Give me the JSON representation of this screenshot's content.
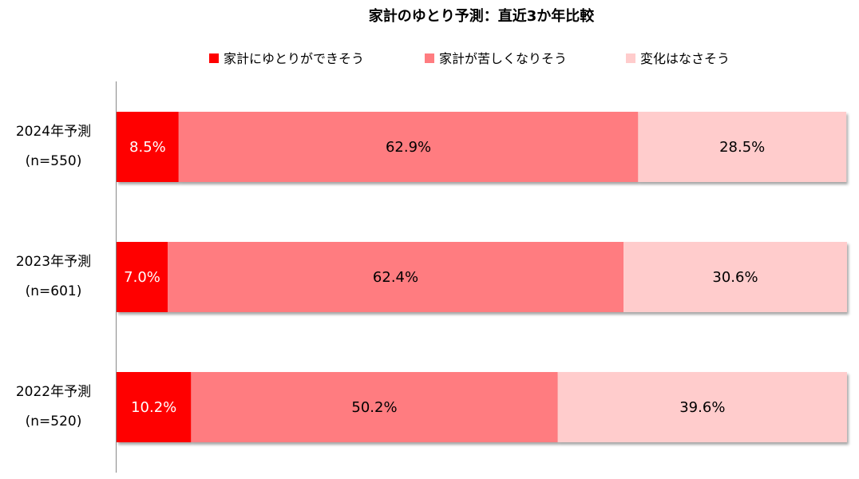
{
  "chart_data": {
    "type": "bar",
    "orientation": "horizontal",
    "stacked": "percent",
    "title": "家計のゆとり予測：直近3か年比較",
    "legend_position": "top",
    "grid": false,
    "xlim": [
      0,
      100
    ],
    "categories": [
      {
        "year": "2024年予測",
        "n": "(n=550)"
      },
      {
        "year": "2023年予測",
        "n": "(n=601)"
      },
      {
        "year": "2022年予測",
        "n": "(n=520)"
      }
    ],
    "series": [
      {
        "name": "家計にゆとりができそう",
        "color": "#ff0000",
        "label_color": "#ffffff",
        "values": [
          8.5,
          7.0,
          10.2
        ],
        "labels": [
          "8.5%",
          "7.0%",
          "10.2%"
        ]
      },
      {
        "name": "家計が苦しくなりそう",
        "color": "#ff7c80",
        "label_color": "#000000",
        "values": [
          62.9,
          62.4,
          50.2
        ],
        "labels": [
          "62.9%",
          "62.4%",
          "50.2%"
        ]
      },
      {
        "name": "変化はなさそう",
        "color": "#ffcccc",
        "label_color": "#000000",
        "values": [
          28.5,
          30.6,
          39.6
        ],
        "labels": [
          "28.5%",
          "30.6%",
          "39.6%"
        ]
      }
    ]
  }
}
